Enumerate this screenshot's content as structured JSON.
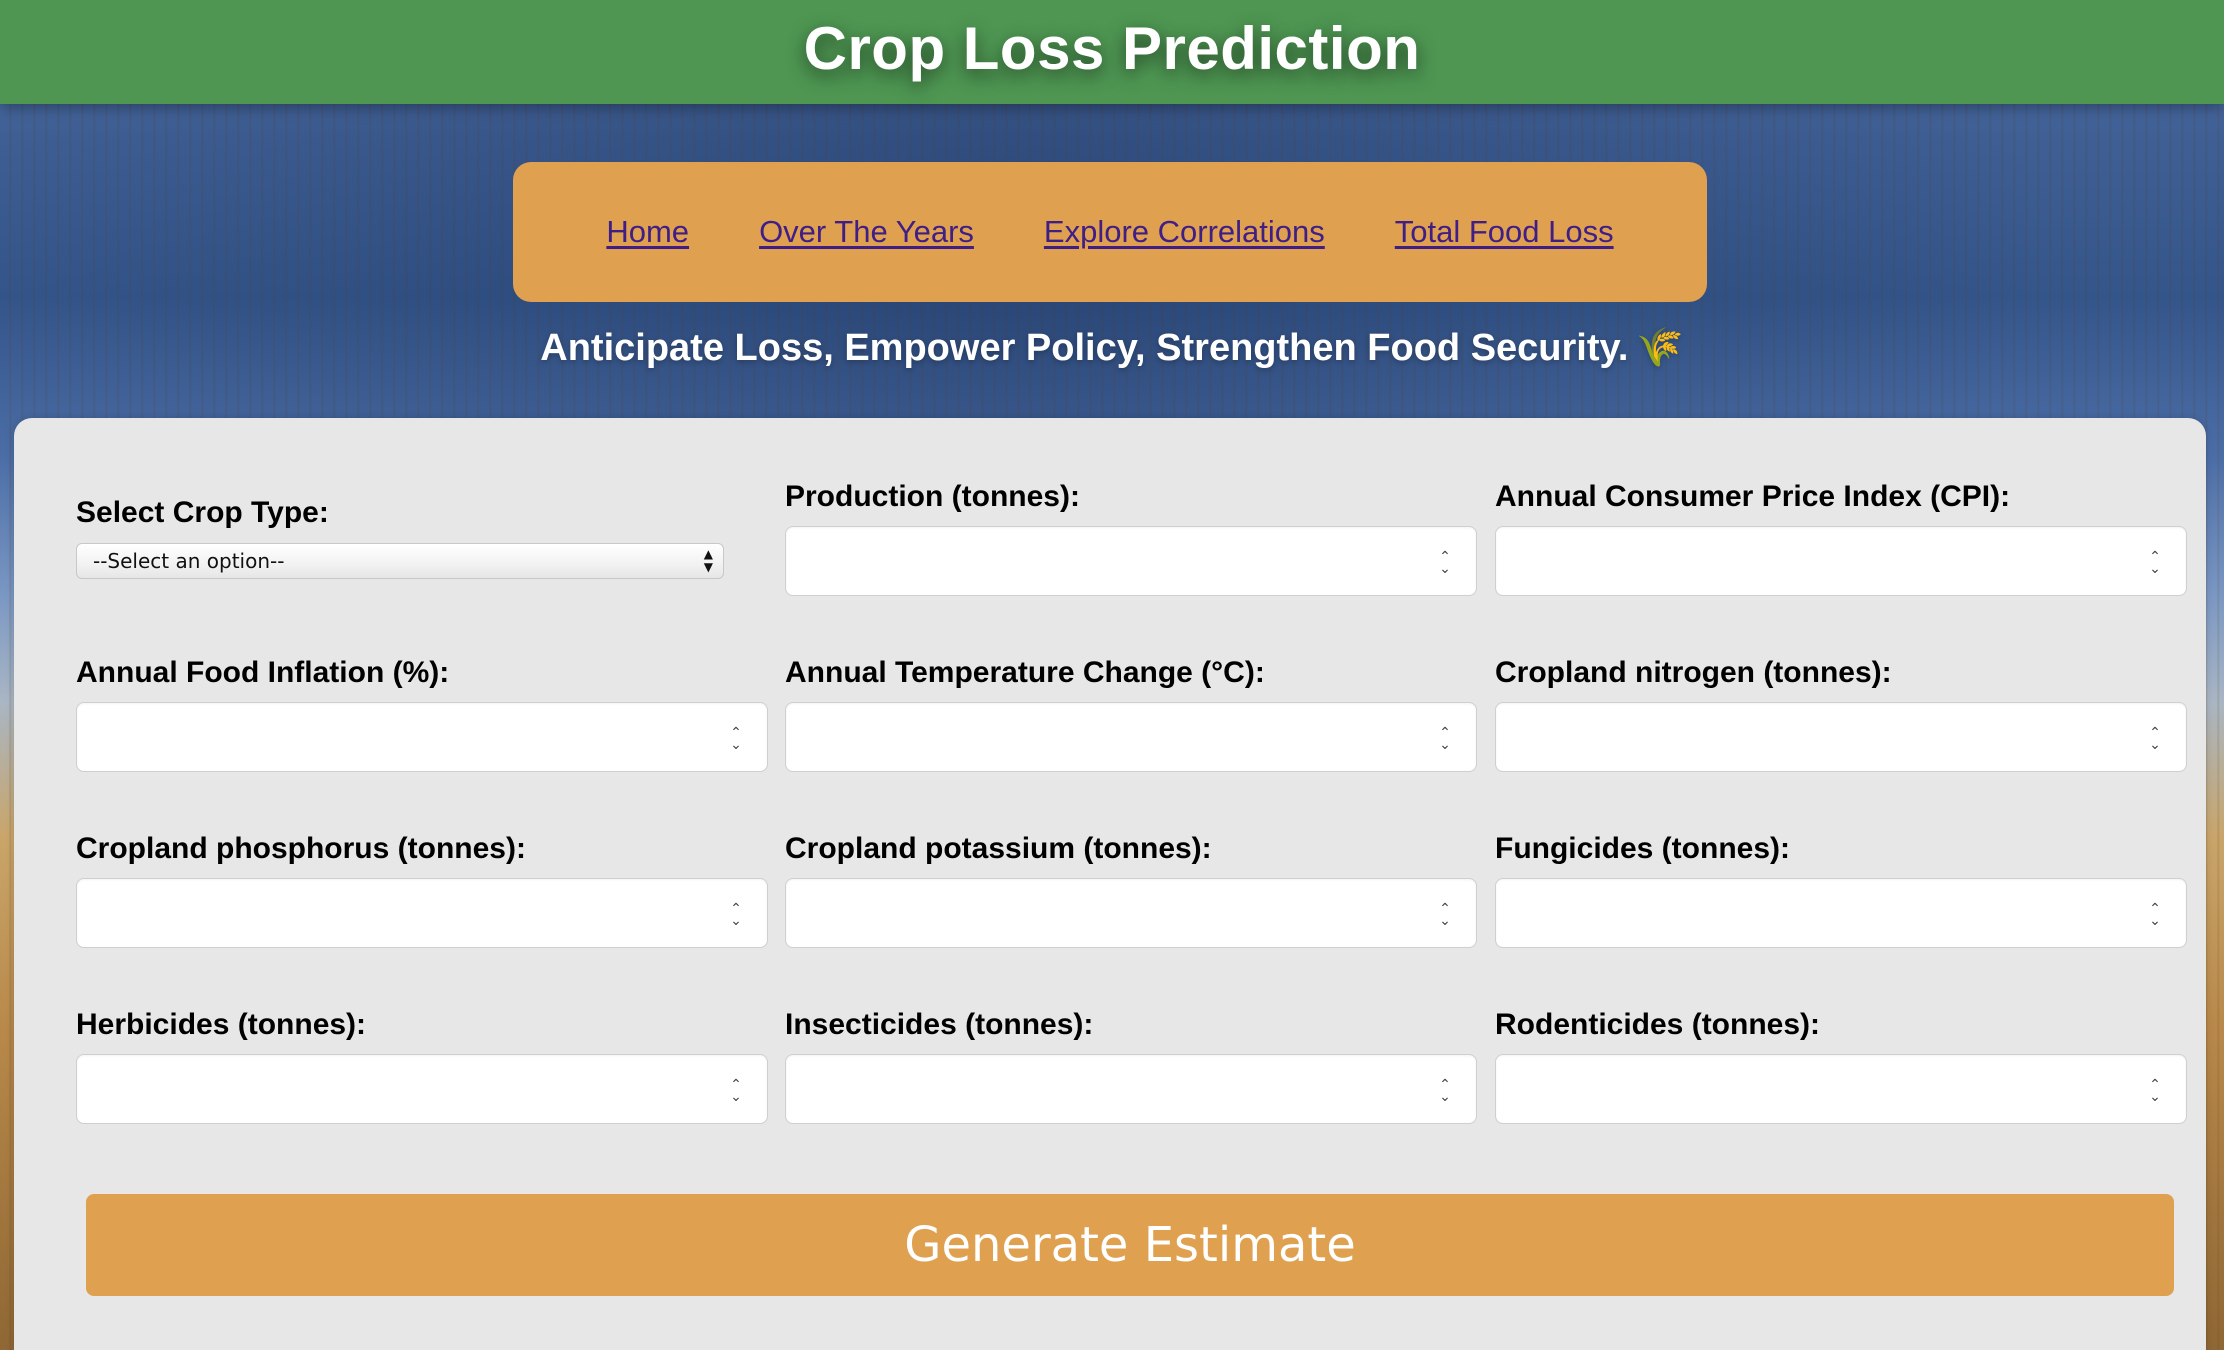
{
  "header": {
    "title": "Crop Loss Prediction"
  },
  "nav": {
    "items": [
      {
        "label": "Home"
      },
      {
        "label": "Over The Years"
      },
      {
        "label": "Explore Correlations"
      },
      {
        "label": "Total Food Loss"
      }
    ]
  },
  "tagline": {
    "text": "Anticipate Loss, Empower Policy, Strengthen Food Security.",
    "icon": "🌾"
  },
  "form": {
    "crop_type": {
      "label": "Select Crop Type:",
      "selected": "--Select an option--"
    },
    "production": {
      "label": "Production (tonnes):",
      "value": ""
    },
    "cpi": {
      "label": "Annual Consumer Price Index (CPI):",
      "value": ""
    },
    "food_inflation": {
      "label": "Annual Food Inflation (%):",
      "value": ""
    },
    "temperature_change": {
      "label": "Annual Temperature Change (°C):",
      "value": ""
    },
    "cropland_nitrogen": {
      "label": "Cropland nitrogen (tonnes):",
      "value": ""
    },
    "cropland_phosphorus": {
      "label": "Cropland phosphorus (tonnes):",
      "value": ""
    },
    "cropland_potassium": {
      "label": "Cropland potassium (tonnes):",
      "value": ""
    },
    "fungicides": {
      "label": "Fungicides (tonnes):",
      "value": ""
    },
    "herbicides": {
      "label": "Herbicides (tonnes):",
      "value": ""
    },
    "insecticides": {
      "label": "Insecticides (tonnes):",
      "value": ""
    },
    "rodenticides": {
      "label": "Rodenticides (tonnes):",
      "value": ""
    },
    "submit_label": "Generate Estimate"
  },
  "colors": {
    "header_bg": "#4e9652",
    "accent": "#dfa050",
    "link": "#3f1e86",
    "panel_bg": "#e7e7e7"
  }
}
